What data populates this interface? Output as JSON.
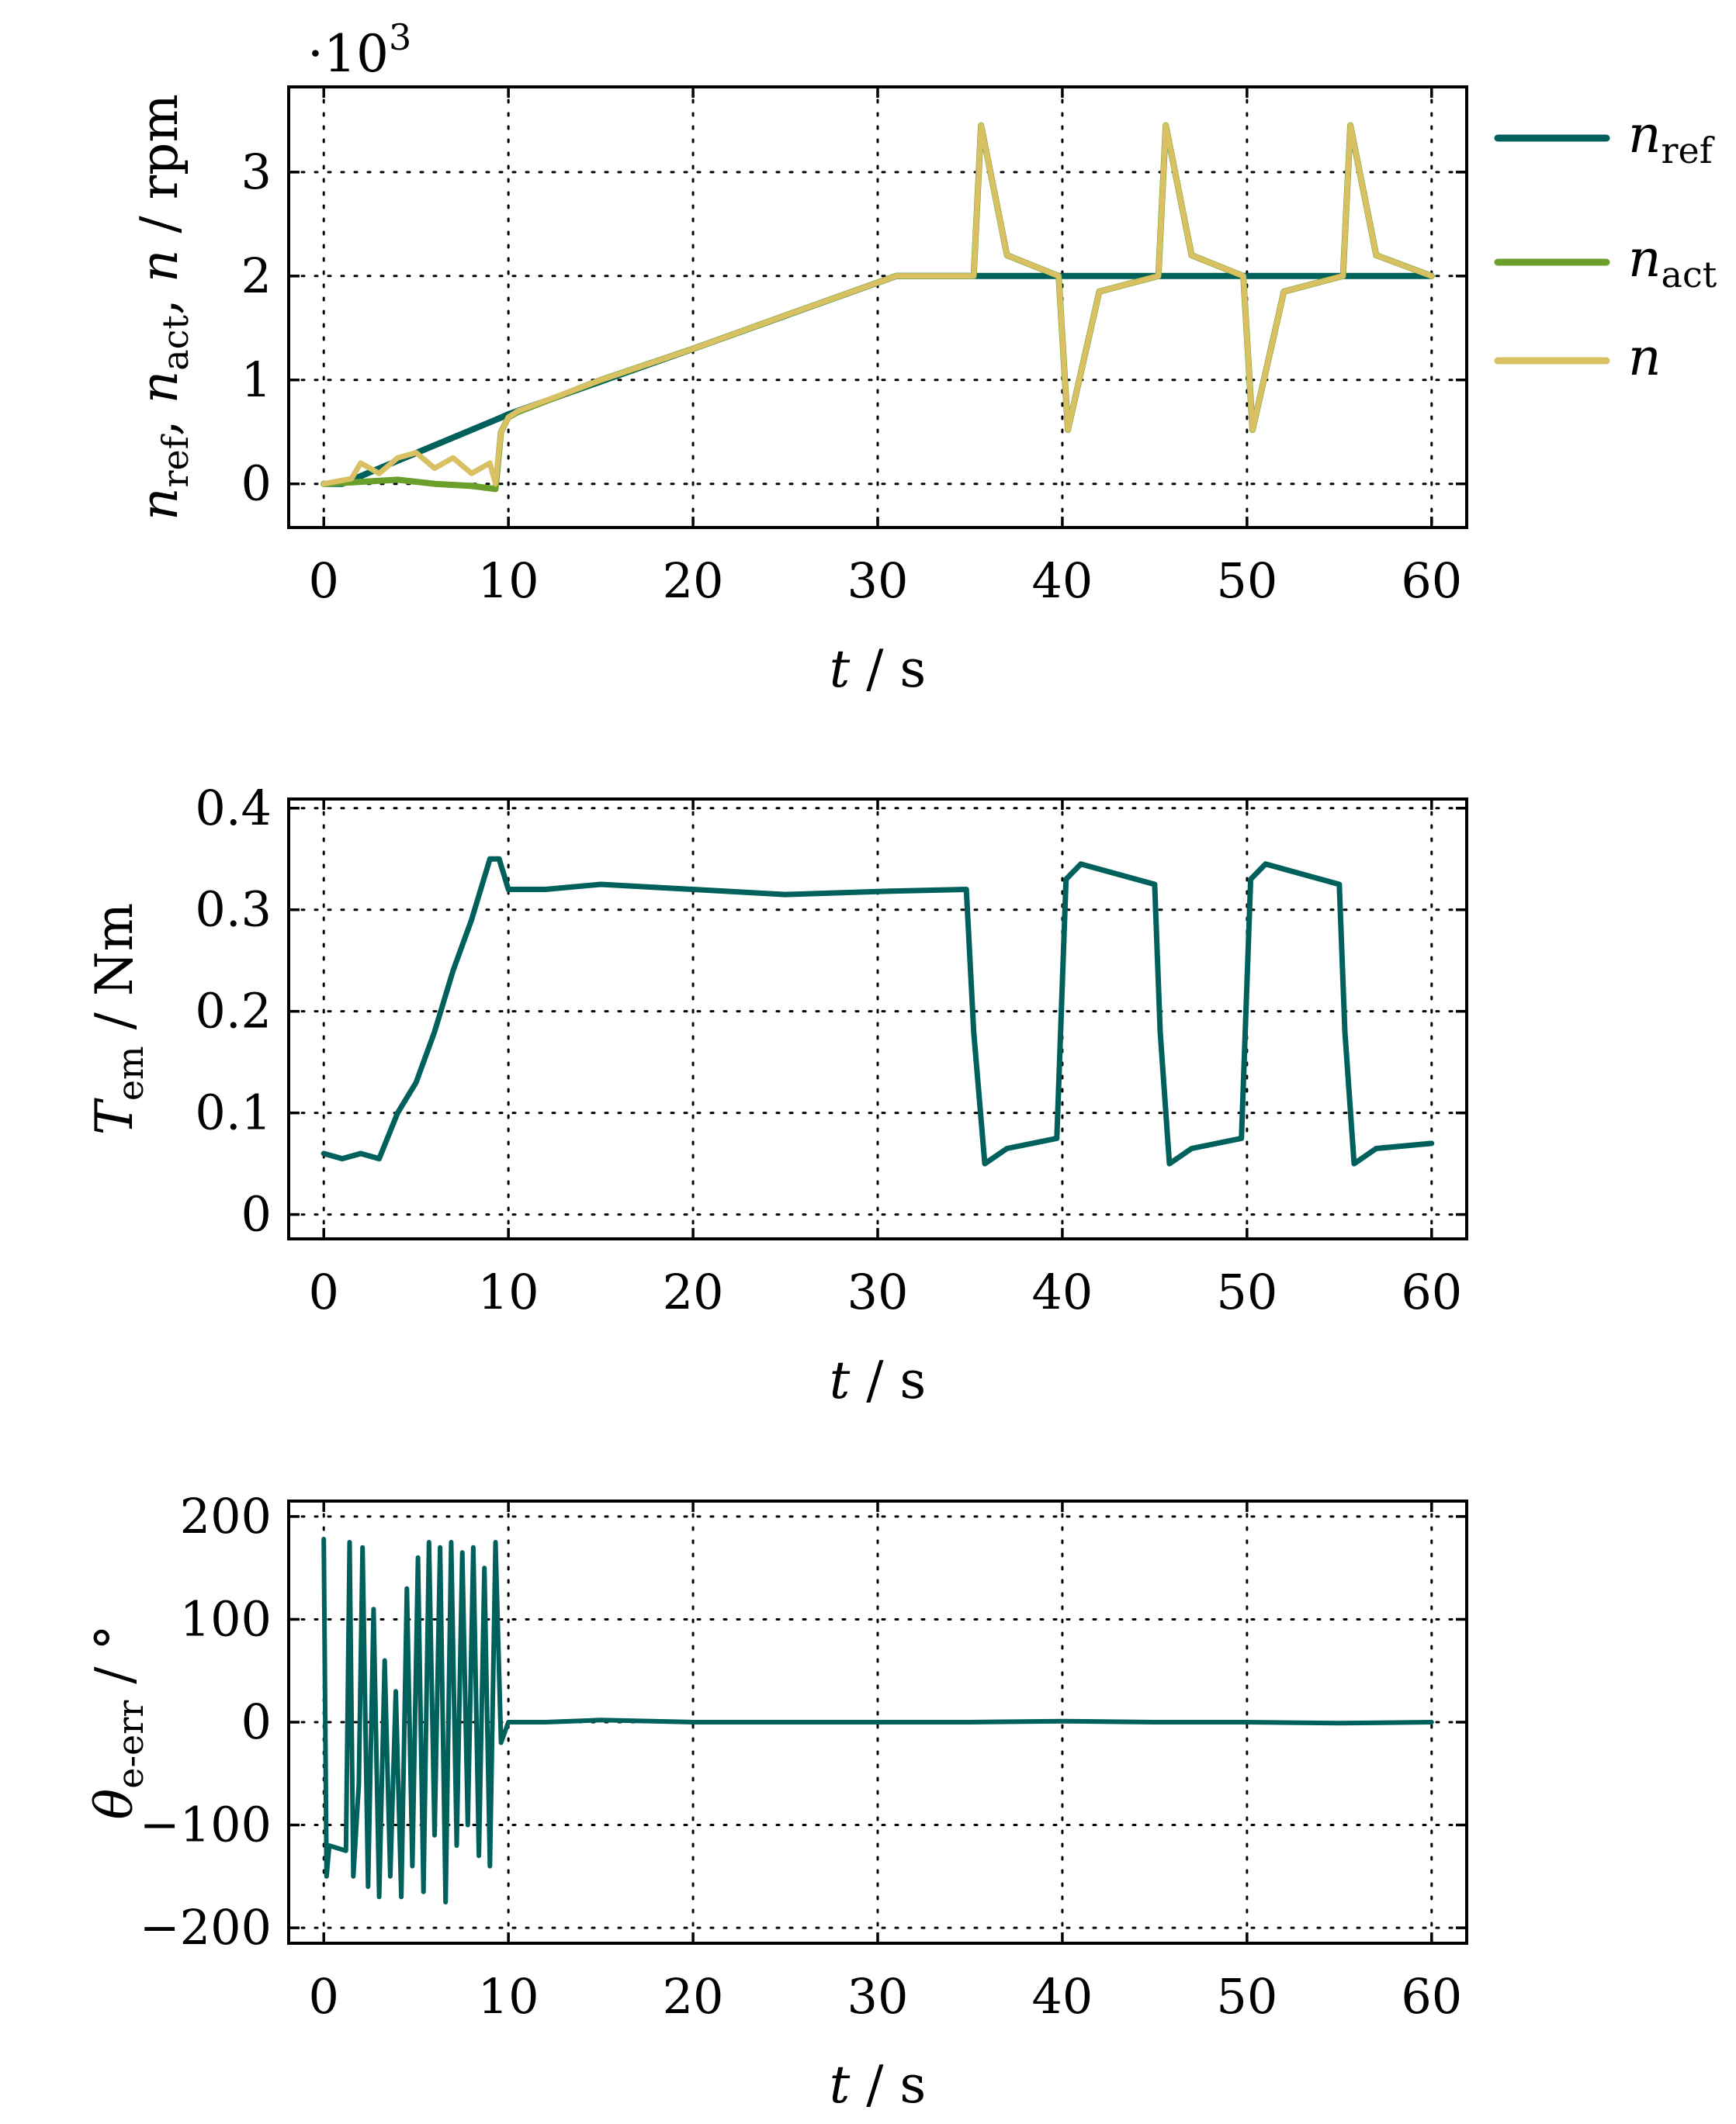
{
  "colors": {
    "n_ref": "#00605c",
    "n_act": "#6b9f2c",
    "n": "#d9c063",
    "torque": "#00605c",
    "theta": "#00605c"
  },
  "chart_data": [
    {
      "type": "line",
      "id": "speed",
      "xlabel": {
        "italic": "t",
        "rest": " / s"
      },
      "ylabel": "n_ref, n_act, n / rpm",
      "ylabel_parts": {
        "a": "n",
        "a_sub": "ref",
        "b": "n",
        "b_sub": "act",
        "c": "n",
        "unit": " / rpm"
      },
      "multiplier": "·10",
      "multiplier_exp": "3",
      "xlim": [
        -1.9,
        61.9
      ],
      "ylim": [
        -0.42,
        3.82
      ],
      "xticks": [
        0,
        10,
        20,
        30,
        40,
        50,
        60
      ],
      "xtick_labels": [
        "0",
        "10",
        "20",
        "30",
        "40",
        "50",
        "60"
      ],
      "yticks": [
        0,
        1,
        2,
        3
      ],
      "ytick_labels": [
        "0",
        "1",
        "2",
        "3"
      ],
      "grid": true,
      "legend_position": "right",
      "legend": [
        {
          "main": "n",
          "sub": "ref"
        },
        {
          "main": "n",
          "sub": "act"
        },
        {
          "main": "n",
          "sub": ""
        }
      ],
      "series": [
        {
          "name": "n_ref",
          "x": [
            0,
            1,
            9.5,
            10,
            20,
            31,
            60
          ],
          "y": [
            0,
            0,
            0.63,
            0.67,
            1.3,
            2.0,
            2.0
          ]
        },
        {
          "name": "n_act",
          "x": [
            0,
            2,
            4,
            6,
            8,
            9.3,
            9.6,
            10,
            10.5,
            15,
            20,
            25,
            31,
            35.2,
            35.6,
            37,
            39.8,
            40.3,
            42,
            45.2,
            45.6,
            47,
            49.8,
            50.3,
            52,
            55.2,
            55.6,
            57,
            60
          ],
          "y": [
            0,
            0.02,
            0.04,
            0.0,
            -0.02,
            -0.05,
            0.5,
            0.64,
            0.69,
            1.0,
            1.3,
            1.62,
            2.0,
            2.0,
            3.45,
            2.2,
            2.0,
            0.52,
            1.85,
            2.0,
            3.45,
            2.2,
            2.0,
            0.52,
            1.85,
            2.0,
            3.45,
            2.2,
            2.0
          ]
        },
        {
          "name": "n",
          "x": [
            0,
            1.5,
            2,
            3,
            4,
            5,
            6,
            7,
            8,
            9,
            9.3,
            9.6,
            10,
            10.5,
            15,
            20,
            25,
            31,
            35.2,
            35.6,
            37,
            39.8,
            40.3,
            42,
            45.2,
            45.6,
            47,
            49.8,
            50.3,
            52,
            55.2,
            55.6,
            57,
            60
          ],
          "y": [
            0,
            0.05,
            0.2,
            0.1,
            0.25,
            0.3,
            0.15,
            0.25,
            0.1,
            0.2,
            0.0,
            0.5,
            0.64,
            0.7,
            1.0,
            1.3,
            1.62,
            2.0,
            2.0,
            3.45,
            2.2,
            2.0,
            0.52,
            1.85,
            2.0,
            3.45,
            2.2,
            2.0,
            0.52,
            1.85,
            2.0,
            3.45,
            2.2,
            2.0
          ]
        }
      ]
    },
    {
      "type": "line",
      "id": "torque",
      "xlabel": {
        "italic": "t",
        "rest": " / s"
      },
      "ylabel": "T_em / Nm",
      "ylabel_parts": {
        "a": "T",
        "a_sub": "em",
        "unit": " / Nm"
      },
      "xlim": [
        -1.9,
        61.9
      ],
      "ylim": [
        -0.024,
        0.409
      ],
      "xticks": [
        0,
        10,
        20,
        30,
        40,
        50,
        60
      ],
      "xtick_labels": [
        "0",
        "10",
        "20",
        "30",
        "40",
        "50",
        "60"
      ],
      "yticks": [
        0,
        0.1,
        0.2,
        0.3,
        0.4
      ],
      "ytick_labels": [
        "0",
        "0.1",
        "0.2",
        "0.3",
        "0.4"
      ],
      "grid": true,
      "series": [
        {
          "name": "T_em",
          "x": [
            0,
            1,
            2,
            3,
            4,
            5,
            6,
            7,
            8,
            9,
            9.5,
            10,
            12,
            15,
            20,
            25,
            30,
            34.8,
            35.2,
            35.8,
            37,
            39.7,
            40.2,
            41,
            45,
            45.3,
            45.8,
            47,
            49.7,
            50.2,
            51,
            55,
            55.3,
            55.8,
            57,
            60
          ],
          "y": [
            0.06,
            0.055,
            0.06,
            0.055,
            0.1,
            0.13,
            0.18,
            0.24,
            0.29,
            0.35,
            0.35,
            0.32,
            0.32,
            0.325,
            0.32,
            0.315,
            0.318,
            0.32,
            0.18,
            0.05,
            0.065,
            0.075,
            0.33,
            0.345,
            0.325,
            0.18,
            0.05,
            0.065,
            0.075,
            0.33,
            0.345,
            0.325,
            0.18,
            0.05,
            0.065,
            0.07
          ]
        }
      ]
    },
    {
      "type": "line",
      "id": "theta",
      "xlabel": {
        "italic": "t",
        "rest": " / s"
      },
      "ylabel": "θ_e-err / °",
      "ylabel_parts": {
        "a": "θ",
        "a_sub": "e-err",
        "unit": " / °"
      },
      "xlim": [
        -1.9,
        61.9
      ],
      "ylim": [
        -215,
        215
      ],
      "xticks": [
        0,
        10,
        20,
        30,
        40,
        50,
        60
      ],
      "xtick_labels": [
        "0",
        "10",
        "20",
        "30",
        "40",
        "50",
        "60"
      ],
      "yticks": [
        -200,
        -100,
        0,
        100,
        200
      ],
      "ytick_labels": [
        "−200",
        "−100",
        "0",
        "100",
        "200"
      ],
      "grid": true,
      "series": [
        {
          "name": "theta_e_err",
          "x": [
            0,
            0.15,
            0.3,
            1.2,
            1.4,
            1.6,
            1.9,
            2.1,
            2.4,
            2.7,
            3.0,
            3.3,
            3.6,
            3.9,
            4.2,
            4.5,
            4.8,
            5.1,
            5.4,
            5.7,
            6.0,
            6.3,
            6.6,
            6.9,
            7.2,
            7.5,
            7.8,
            8.1,
            8.4,
            8.7,
            9.0,
            9.3,
            9.6,
            10,
            12,
            15,
            20,
            25,
            30,
            35,
            40,
            45,
            50,
            55,
            60
          ],
          "y": [
            178,
            -150,
            -120,
            -125,
            175,
            -150,
            -60,
            170,
            -160,
            110,
            -170,
            60,
            -150,
            30,
            -170,
            130,
            -140,
            160,
            -165,
            175,
            -110,
            170,
            -175,
            175,
            -120,
            165,
            -100,
            170,
            -130,
            150,
            -140,
            175,
            -20,
            0,
            0,
            2,
            0,
            0,
            0,
            0,
            1,
            0,
            0,
            -1,
            0
          ]
        }
      ]
    }
  ]
}
